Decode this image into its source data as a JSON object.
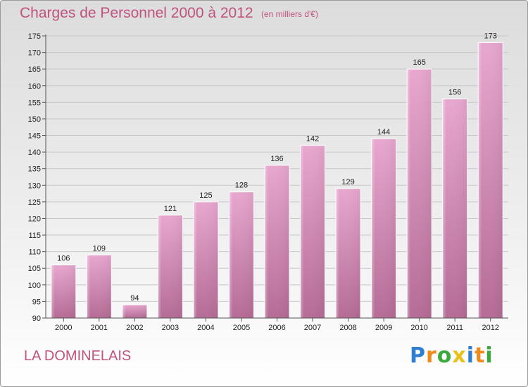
{
  "title": "Charges de Personnel 2000 à 2012",
  "subtitle": "(en milliers d'€)",
  "commune": "LA DOMINELAIS",
  "logo": {
    "text": "Proxiti",
    "letters": [
      {
        "ch": "P",
        "color": "#2e7fd1"
      },
      {
        "ch": "r",
        "color": "#f08a1c"
      },
      {
        "ch": "o",
        "color": "#3da83d"
      },
      {
        "ch": "x",
        "color": "#e8c21a"
      },
      {
        "ch": "i",
        "color": "#2e7fd1"
      },
      {
        "ch": "t",
        "color": "#f08a1c"
      },
      {
        "ch": "i",
        "color": "#3da83d"
      }
    ]
  },
  "colors": {
    "accent": "#c0527f",
    "bar_top": "#e8a7cf",
    "bar_bottom": "#b56c96",
    "grid": "#c8c8c8"
  },
  "chart_data": {
    "type": "bar",
    "title": "Charges de Personnel 2000 à 2012",
    "subtitle": "(en milliers d'€)",
    "categories": [
      "2000",
      "2001",
      "2002",
      "2003",
      "2004",
      "2005",
      "2006",
      "2007",
      "2008",
      "2009",
      "2010",
      "2011",
      "2012"
    ],
    "values": [
      106,
      109,
      94,
      121,
      125,
      128,
      136,
      142,
      129,
      144,
      165,
      156,
      173
    ],
    "ylim": [
      90,
      175
    ],
    "yticks": [
      90,
      95,
      100,
      105,
      110,
      115,
      120,
      125,
      130,
      135,
      140,
      145,
      150,
      155,
      160,
      165,
      170,
      175
    ],
    "grid": true,
    "data_labels": true
  }
}
